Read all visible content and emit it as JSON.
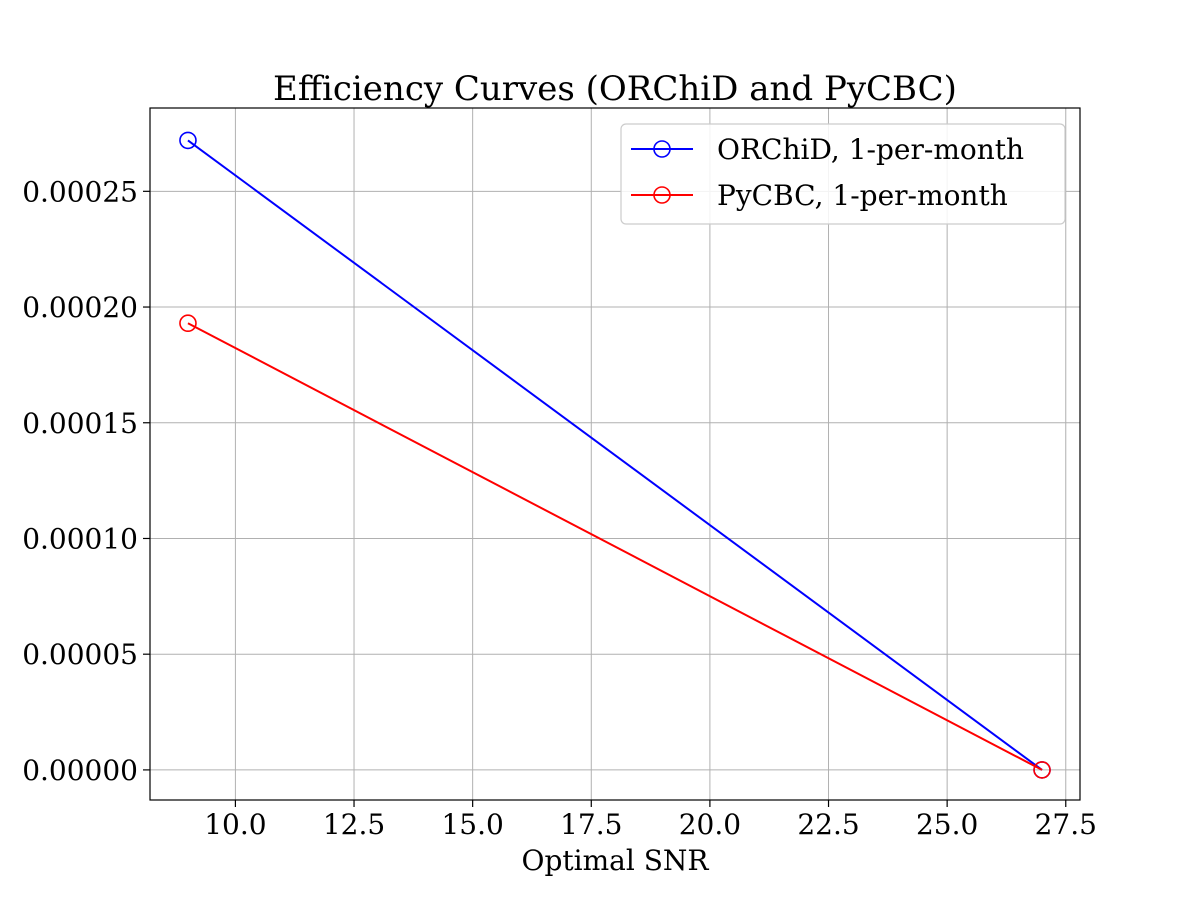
{
  "chart_data": {
    "type": "line",
    "title": "Efficiency Curves (ORChiD and PyCBC)",
    "xlabel": "Optimal SNR",
    "ylabel": "",
    "xlim": [
      8.2,
      27.8
    ],
    "ylim": [
      -1.3e-05,
      0.000286
    ],
    "x_ticks": [
      "10.0",
      "12.5",
      "15.0",
      "17.5",
      "20.0",
      "22.5",
      "25.0",
      "27.5"
    ],
    "x_tick_values": [
      10.0,
      12.5,
      15.0,
      17.5,
      20.0,
      22.5,
      25.0,
      27.5
    ],
    "y_ticks": [
      "0.00000",
      "0.00005",
      "0.00010",
      "0.00015",
      "0.00020",
      "0.00025"
    ],
    "y_tick_values": [
      0.0,
      5e-05,
      0.0001,
      0.00015,
      0.0002,
      0.00025
    ],
    "grid": true,
    "legend_position": "top-right",
    "series": [
      {
        "name": "ORChiD, 1-per-month",
        "color": "#0000ff",
        "marker": "open-circle",
        "x": [
          9.0,
          27.0
        ],
        "y": [
          0.000272,
          0.0
        ]
      },
      {
        "name": "PyCBC, 1-per-month",
        "color": "#ff0000",
        "marker": "open-circle",
        "x": [
          9.0,
          27.0
        ],
        "y": [
          0.000193,
          0.0
        ]
      }
    ]
  }
}
